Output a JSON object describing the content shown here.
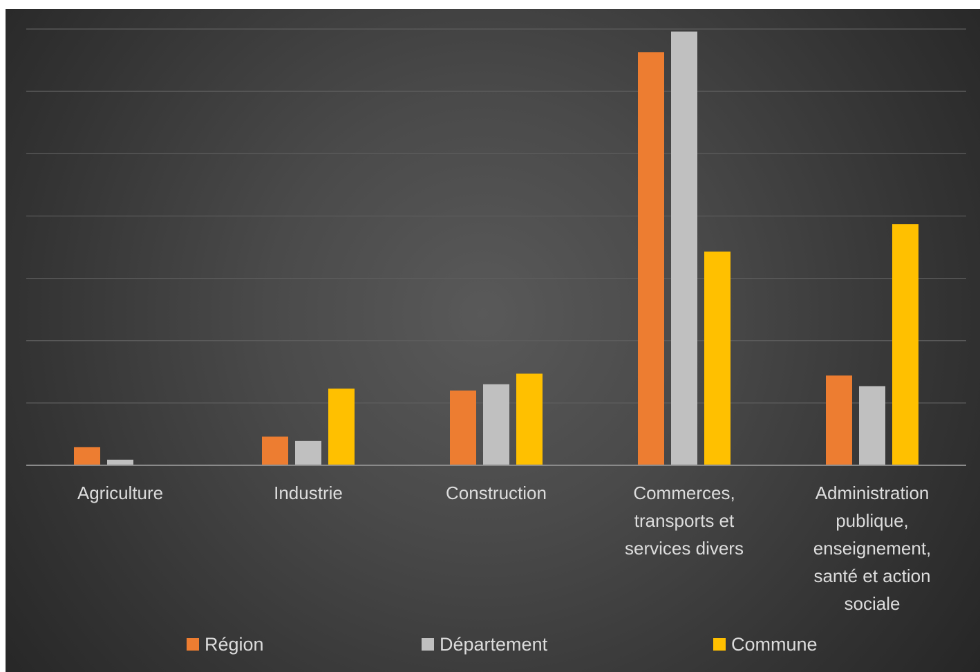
{
  "chart_data": {
    "type": "bar",
    "title": "",
    "xlabel": "",
    "ylabel": "",
    "ylim": [
      0,
      70
    ],
    "grid": true,
    "legend_position": "bottom",
    "categories": [
      [
        "Agriculture"
      ],
      [
        "Industrie"
      ],
      [
        "Construction"
      ],
      [
        "Commerces,",
        "transports et",
        "services divers"
      ],
      [
        "Administration",
        "publique,",
        "enseignement,",
        "santé et action",
        "sociale"
      ]
    ],
    "series": [
      {
        "name": "Région",
        "color": "#ED7D31",
        "values": [
          2.9,
          4.6,
          12.0,
          66.3,
          14.4
        ]
      },
      {
        "name": "Département",
        "color": "#C0C0C0",
        "values": [
          0.9,
          3.9,
          13.0,
          69.6,
          12.7
        ]
      },
      {
        "name": "Commune",
        "color": "#FFC000",
        "values": [
          0,
          12.3,
          14.7,
          34.3,
          38.7
        ]
      }
    ]
  }
}
